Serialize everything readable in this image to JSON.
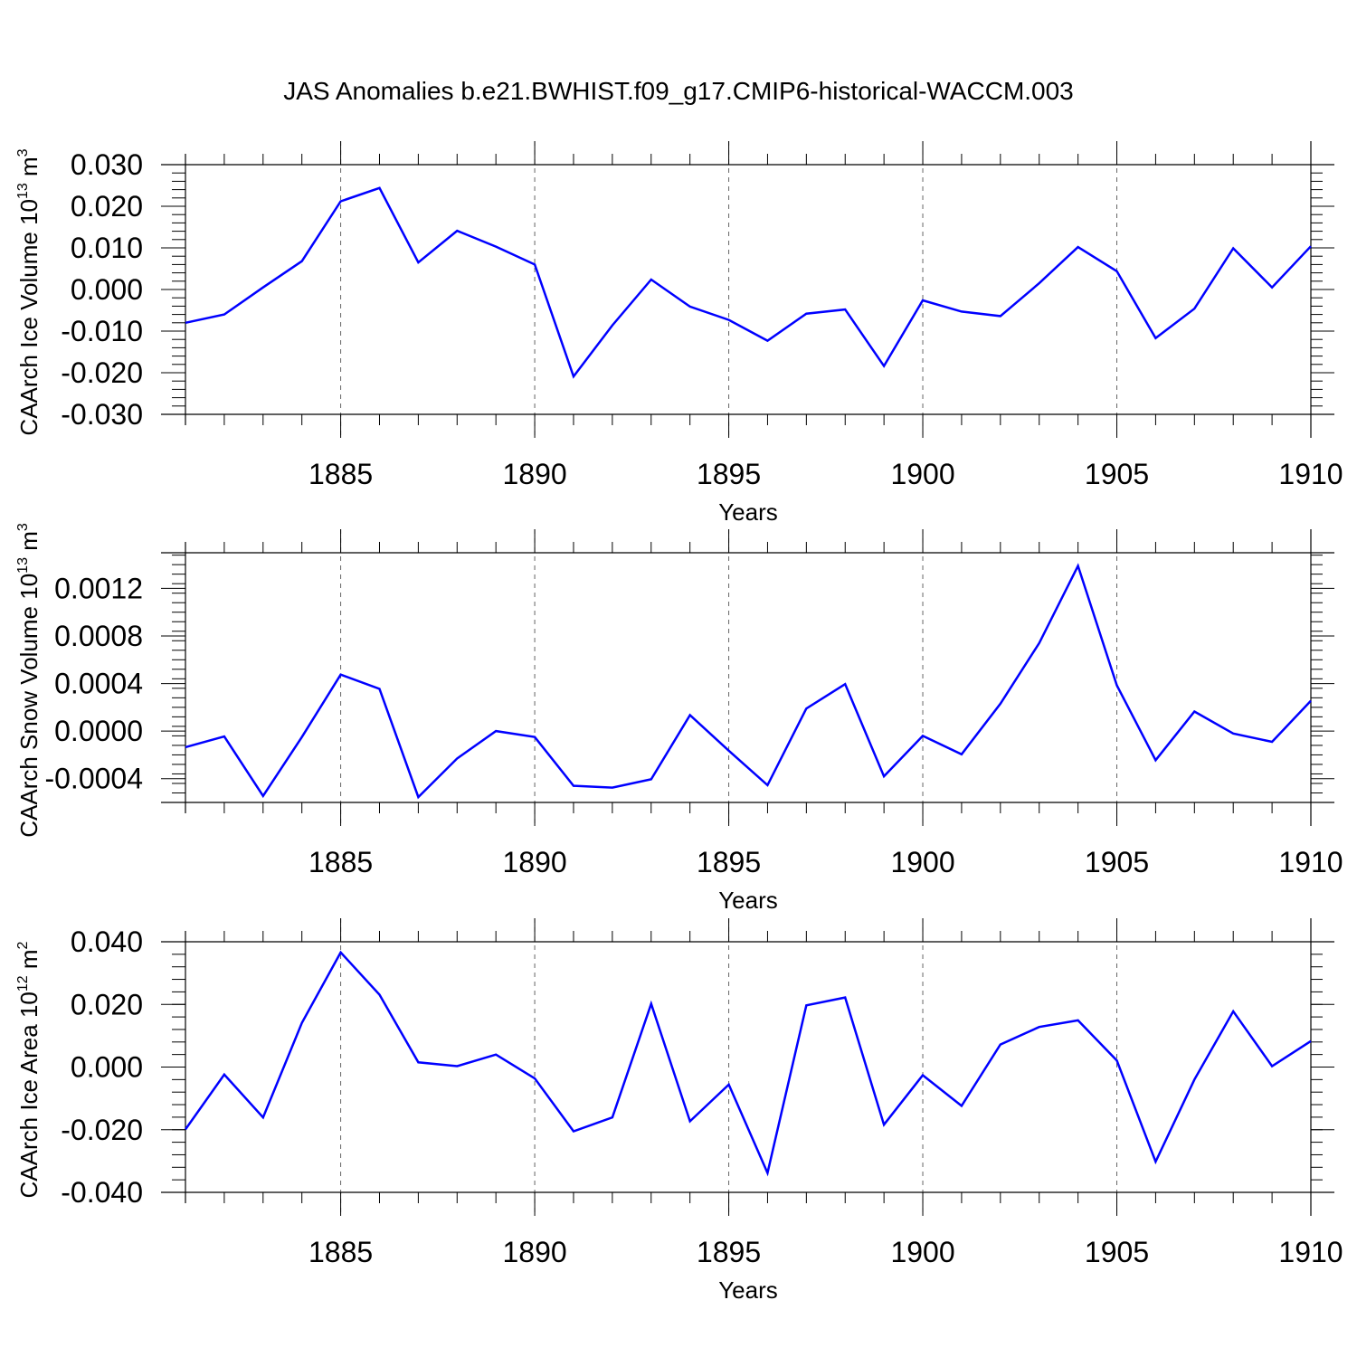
{
  "title": "JAS Anomalies b.e21.BWHIST.f09_g17.CMIP6-historical-WACCM.003",
  "line_color": "#0000ff",
  "chart_data": [
    {
      "type": "line",
      "ylabel": {
        "text": "CAArch Ice Volume 10",
        "exp": "13",
        "unit": " m",
        "unit_exp": "3"
      },
      "xlabel": "Years",
      "xlim": [
        1881,
        1910
      ],
      "ylim": [
        -0.03,
        0.03
      ],
      "yticks": [
        -0.03,
        -0.02,
        -0.01,
        0.0,
        0.01,
        0.02,
        0.03
      ],
      "ytick_labels": [
        "-0.030",
        "-0.020",
        "-0.010",
        "0.000",
        "0.010",
        "0.020",
        "0.030"
      ],
      "xticks": [
        1885,
        1890,
        1895,
        1900,
        1905,
        1910
      ],
      "xtick_labels": [
        "1885",
        "1890",
        "1895",
        "1900",
        "1905",
        "1910"
      ],
      "grid": true,
      "x": [
        1881,
        1882,
        1883,
        1884,
        1885,
        1886,
        1887,
        1888,
        1889,
        1890,
        1891,
        1892,
        1893,
        1894,
        1895,
        1896,
        1897,
        1898,
        1899,
        1900,
        1901,
        1902,
        1903,
        1904,
        1905,
        1906,
        1907,
        1908,
        1909,
        1910
      ],
      "y": [
        -0.008,
        -0.006,
        0.0005,
        0.0068,
        0.0212,
        0.0244,
        0.0065,
        0.0141,
        0.0103,
        0.006,
        -0.0209,
        -0.0086,
        0.0024,
        -0.0041,
        -0.0073,
        -0.0123,
        -0.0058,
        -0.0048,
        -0.0184,
        -0.0026,
        -0.0053,
        -0.0064,
        0.0015,
        0.0102,
        0.0044,
        -0.0117,
        -0.0046,
        0.0099,
        0.0005,
        0.0104
      ]
    },
    {
      "type": "line",
      "ylabel": {
        "text": "CAArch Snow Volume 10",
        "exp": "13",
        "unit": " m",
        "unit_exp": "3"
      },
      "xlabel": "Years",
      "xlim": [
        1881,
        1910
      ],
      "ylim": [
        -0.0006,
        0.0015
      ],
      "yticks": [
        -0.0004,
        0.0,
        0.0004,
        0.0008,
        0.0012
      ],
      "ytick_labels": [
        "-0.0004",
        "0.0000",
        "0.0004",
        "0.0008",
        "0.0012"
      ],
      "xticks": [
        1885,
        1890,
        1895,
        1900,
        1905,
        1910
      ],
      "xtick_labels": [
        "1885",
        "1890",
        "1895",
        "1900",
        "1905",
        "1910"
      ],
      "grid": true,
      "x": [
        1881,
        1882,
        1883,
        1884,
        1885,
        1886,
        1887,
        1888,
        1889,
        1890,
        1891,
        1892,
        1893,
        1894,
        1895,
        1896,
        1897,
        1898,
        1899,
        1900,
        1901,
        1902,
        1903,
        1904,
        1905,
        1906,
        1907,
        1908,
        1909,
        1910
      ],
      "y": [
        -0.000135,
        -4.5e-05,
        -0.000545,
        -5e-05,
        0.000475,
        0.000355,
        -0.000555,
        -0.00023,
        0.0,
        -5e-05,
        -0.00046,
        -0.000475,
        -0.000405,
        0.000135,
        -0.000165,
        -0.000455,
        0.00019,
        0.000395,
        -0.00038,
        -4e-05,
        -0.000195,
        0.00023,
        0.00074,
        0.00139,
        0.000385,
        -0.000245,
        0.000165,
        -2e-05,
        -9e-05,
        0.000255
      ]
    },
    {
      "type": "line",
      "ylabel": {
        "text": "CAArch Ice Area 10",
        "exp": "12",
        "unit": " m",
        "unit_exp": "2"
      },
      "xlabel": "Years",
      "xlim": [
        1881,
        1910
      ],
      "ylim": [
        -0.04,
        0.04
      ],
      "yticks": [
        -0.04,
        -0.02,
        0.0,
        0.02,
        0.04
      ],
      "ytick_labels": [
        "-0.040",
        "-0.020",
        "0.000",
        "0.020",
        "0.040"
      ],
      "xticks": [
        1885,
        1890,
        1895,
        1900,
        1905,
        1910
      ],
      "xtick_labels": [
        "1885",
        "1890",
        "1895",
        "1900",
        "1905",
        "1910"
      ],
      "grid": true,
      "x": [
        1881,
        1882,
        1883,
        1884,
        1885,
        1886,
        1887,
        1888,
        1889,
        1890,
        1891,
        1892,
        1893,
        1894,
        1895,
        1896,
        1897,
        1898,
        1899,
        1900,
        1901,
        1902,
        1903,
        1904,
        1905,
        1906,
        1907,
        1908,
        1909,
        1910
      ],
      "y": [
        -0.0199,
        -0.0024,
        -0.0161,
        0.0141,
        0.0366,
        0.0231,
        0.0015,
        0.0003,
        0.004,
        -0.0036,
        -0.0205,
        -0.0161,
        0.0202,
        -0.0173,
        -0.0056,
        -0.0338,
        0.0197,
        0.0222,
        -0.0184,
        -0.0026,
        -0.0124,
        0.0072,
        0.0128,
        0.0149,
        0.0021,
        -0.0302,
        -0.004,
        0.0178,
        0.0003,
        0.0083
      ]
    }
  ]
}
